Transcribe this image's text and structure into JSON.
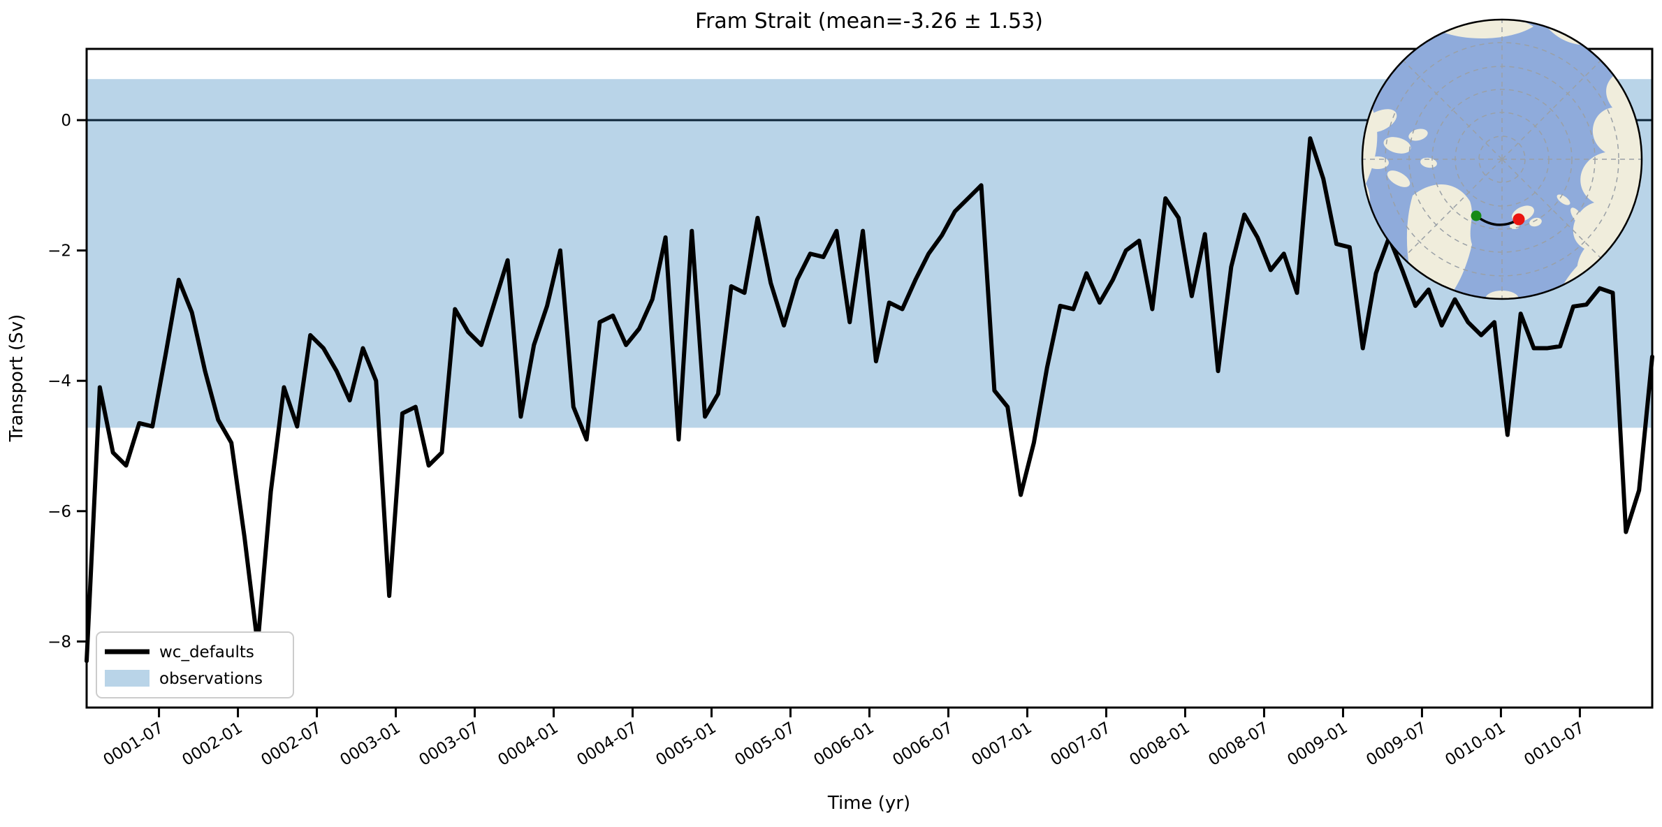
{
  "figure": {
    "title": "Fram Strait (mean=-3.26 ± 1.53)",
    "xlabel": "Time (yr)",
    "ylabel": "Transport (Sv)"
  },
  "legend": {
    "items": [
      {
        "label": "wc_defaults",
        "swatch": "line",
        "color": "#000000"
      },
      {
        "label": "observations",
        "swatch": "patch",
        "color": "#b9d4e8"
      }
    ]
  },
  "colors": {
    "series_line": "#000000",
    "zero_line": "#0d2438",
    "obs_band": "#b9d4e8",
    "spine": "#000000",
    "legend_border": "#cccccc",
    "map_ocean": "#8fabdb",
    "map_land": "#f0eddc",
    "map_graticule": "#9aa0a6",
    "map_border": "#000000",
    "start_dot": "#178a17",
    "end_dot": "#ea1510"
  },
  "inset_map": {
    "description": "Arctic polar stereographic inset map with section endpoints",
    "start_point": "green-dot",
    "end_point": "red-dot"
  },
  "chart_data": {
    "type": "line",
    "title": "Fram Strait (mean=-3.26 ± 1.53)",
    "xlabel": "Time (yr)",
    "ylabel": "Transport (Sv)",
    "x_start": "0001-01",
    "x_end": "0010-12",
    "x_freq": "monthly",
    "ylim": [
      -9.05,
      1.09
    ],
    "yticks": [
      0,
      -2,
      -4,
      -6,
      -8
    ],
    "ytick_labels": [
      "0",
      "−2",
      "−4",
      "−6",
      "−8"
    ],
    "xtick_labels": [
      "0001-07",
      "0002-01",
      "0002-07",
      "0003-01",
      "0003-07",
      "0004-01",
      "0004-07",
      "0005-01",
      "0005-07",
      "0006-01",
      "0006-07",
      "0007-01",
      "0007-07",
      "0008-01",
      "0008-07",
      "0009-01",
      "0009-07",
      "0010-01",
      "0010-07"
    ],
    "zero_line": 0,
    "observations_band": {
      "label": "observations",
      "from": -4.72,
      "to": 0.63
    },
    "series": [
      {
        "name": "wc_defaults",
        "values": [
          -8.3,
          -4.1,
          -5.1,
          -5.3,
          -4.65,
          -4.7,
          -3.6,
          -2.45,
          -2.95,
          -3.85,
          -4.6,
          -4.95,
          -6.4,
          -8.05,
          -5.7,
          -4.1,
          -4.7,
          -3.3,
          -3.5,
          -3.85,
          -4.3,
          -3.5,
          -4.0,
          -7.3,
          -4.5,
          -4.4,
          -5.3,
          -5.1,
          -2.9,
          -3.25,
          -3.45,
          -2.8,
          -2.15,
          -4.55,
          -3.45,
          -2.85,
          -2.0,
          -4.4,
          -4.9,
          -3.1,
          -3.0,
          -3.45,
          -3.2,
          -2.75,
          -1.8,
          -4.9,
          -1.7,
          -4.55,
          -4.2,
          -2.55,
          -2.65,
          -1.5,
          -2.5,
          -3.15,
          -2.45,
          -2.05,
          -2.1,
          -1.7,
          -3.1,
          -1.7,
          -3.7,
          -2.8,
          -2.9,
          -2.45,
          -2.05,
          -1.77,
          -1.4,
          -1.2,
          -1.0,
          -4.15,
          -4.4,
          -5.75,
          -4.95,
          -3.8,
          -2.85,
          -2.9,
          -2.35,
          -2.8,
          -2.45,
          -2.0,
          -1.85,
          -2.9,
          -1.2,
          -1.5,
          -2.7,
          -1.75,
          -3.85,
          -2.25,
          -1.45,
          -1.8,
          -2.3,
          -2.05,
          -2.65,
          -0.28,
          -0.9,
          -1.9,
          -1.95,
          -3.5,
          -2.35,
          -1.8,
          -2.3,
          -2.85,
          -2.6,
          -3.15,
          -2.75,
          -3.1,
          -3.3,
          -3.1,
          -4.83,
          -2.97,
          -3.5,
          -3.5,
          -3.47,
          -2.86,
          -2.83,
          -2.58,
          -2.65,
          -6.32,
          -5.68,
          -3.63
        ]
      }
    ],
    "legend_position": "lower left",
    "grid": false
  }
}
